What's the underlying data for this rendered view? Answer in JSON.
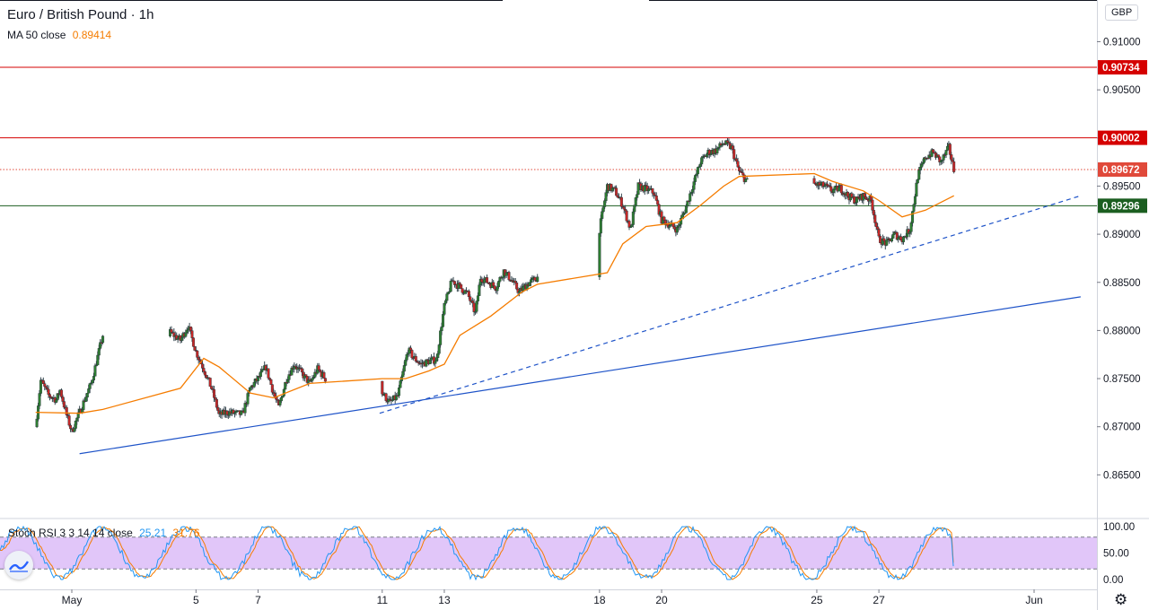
{
  "header": {
    "title": "Euro / British Pound · 1h",
    "ma_label": "MA 50 close",
    "ma_value": "0.89414",
    "currency": "GBP"
  },
  "stoch": {
    "label": "Stoch RSI 3 3 14 14 close",
    "k_value": "25.21",
    "d_value": "31.76"
  },
  "icons": {
    "settings": "gear-icon",
    "logo": "tradingview-logo-icon"
  },
  "colors": {
    "up": "#26a69a",
    "down": "#ef5350",
    "candle_body_up": "#2e7d32",
    "candle_body_down": "#c62828",
    "ma": "#f57c00",
    "trend": "#1e53c8",
    "resistance": "#d50000",
    "support": "#1b5e20",
    "current": "#e0493a",
    "stoch_band": "#e1c6f9",
    "k_line": "#2196f3",
    "d_line": "#f57c00"
  },
  "chart_data": {
    "type": "candlestick",
    "timeframe": "1h",
    "symbol": "Euro / British Pound",
    "price_scale": {
      "ticks": [
        "0.91000",
        "0.90500",
        "0.90000",
        "0.89500",
        "0.89000",
        "0.88500",
        "0.88000",
        "0.87500",
        "0.87000",
        "0.86500"
      ],
      "range": [
        0.8615,
        0.9125
      ]
    },
    "time_axis": {
      "labels": [
        {
          "label": "May",
          "date": "2020-05-01"
        },
        {
          "label": "5",
          "date": "2020-05-05"
        },
        {
          "label": "7",
          "date": "2020-05-07"
        },
        {
          "label": "11",
          "date": "2020-05-11"
        },
        {
          "label": "13",
          "date": "2020-05-13"
        },
        {
          "label": "18",
          "date": "2020-05-18"
        },
        {
          "label": "20",
          "date": "2020-05-20"
        },
        {
          "label": "25",
          "date": "2020-05-25"
        },
        {
          "label": "27",
          "date": "2020-05-27"
        },
        {
          "label": "Jun",
          "date": "2020-06-01"
        }
      ]
    },
    "close_path": [
      [
        "2020-04-29 20:00",
        0.87
      ],
      [
        "2020-04-30 00:00",
        0.8748
      ],
      [
        "2020-04-30 06:00",
        0.8733
      ],
      [
        "2020-04-30 12:00",
        0.8728
      ],
      [
        "2020-04-30 15:00",
        0.8738
      ],
      [
        "2020-04-30 20:00",
        0.8712
      ],
      [
        "2020-05-01 00:00",
        0.8695
      ],
      [
        "2020-05-01 06:00",
        0.8715
      ],
      [
        "2020-05-01 15:00",
        0.8745
      ],
      [
        "2020-05-02 00:00",
        0.8795
      ],
      [
        "2020-05-04 04:00",
        0.8798
      ],
      [
        "2020-05-04 12:00",
        0.879
      ],
      [
        "2020-05-04 18:00",
        0.8805
      ],
      [
        "2020-05-05 00:00",
        0.8778
      ],
      [
        "2020-05-05 06:00",
        0.876
      ],
      [
        "2020-05-05 12:00",
        0.874
      ],
      [
        "2020-05-05 18:00",
        0.8712
      ],
      [
        "2020-05-06 00:00",
        0.8715
      ],
      [
        "2020-05-06 12:00",
        0.8713
      ],
      [
        "2020-05-06 18:00",
        0.874
      ],
      [
        "2020-05-07 00:00",
        0.875
      ],
      [
        "2020-05-07 06:00",
        0.8762
      ],
      [
        "2020-05-07 12:00",
        0.8735
      ],
      [
        "2020-05-07 16:00",
        0.872
      ],
      [
        "2020-05-07 22:00",
        0.875
      ],
      [
        "2020-05-08 04:00",
        0.8765
      ],
      [
        "2020-05-08 10:00",
        0.8755
      ],
      [
        "2020-05-08 16:00",
        0.8745
      ],
      [
        "2020-05-08 22:00",
        0.876
      ],
      [
        "2020-05-09 04:00",
        0.875
      ],
      [
        "2020-05-11 00:00",
        0.8735
      ],
      [
        "2020-05-11 06:00",
        0.8725
      ],
      [
        "2020-05-11 12:00",
        0.8732
      ],
      [
        "2020-05-11 20:00",
        0.878
      ],
      [
        "2020-05-12 00:00",
        0.8772
      ],
      [
        "2020-05-12 06:00",
        0.8765
      ],
      [
        "2020-05-12 12:00",
        0.8768
      ],
      [
        "2020-05-12 18:00",
        0.877
      ],
      [
        "2020-05-13 00:00",
        0.8825
      ],
      [
        "2020-05-13 06:00",
        0.8852
      ],
      [
        "2020-05-13 12:00",
        0.8845
      ],
      [
        "2020-05-13 18:00",
        0.8838
      ],
      [
        "2020-05-14 00:00",
        0.8818
      ],
      [
        "2020-05-14 04:00",
        0.8855
      ],
      [
        "2020-05-14 10:00",
        0.885
      ],
      [
        "2020-05-14 16:00",
        0.8845
      ],
      [
        "2020-05-14 22:00",
        0.8862
      ],
      [
        "2020-05-15 04:00",
        0.8852
      ],
      [
        "2020-05-15 10:00",
        0.884
      ],
      [
        "2020-05-15 16:00",
        0.8848
      ],
      [
        "2020-05-16 00:00",
        0.8855
      ],
      [
        "2020-05-18 00:00",
        0.8905
      ],
      [
        "2020-05-18 06:00",
        0.895
      ],
      [
        "2020-05-18 12:00",
        0.8945
      ],
      [
        "2020-05-18 18:00",
        0.893
      ],
      [
        "2020-05-19 00:00",
        0.8905
      ],
      [
        "2020-05-19 06:00",
        0.895
      ],
      [
        "2020-05-19 12:00",
        0.8947
      ],
      [
        "2020-05-19 18:00",
        0.8943
      ],
      [
        "2020-05-20 00:00",
        0.8915
      ],
      [
        "2020-05-20 06:00",
        0.891
      ],
      [
        "2020-05-20 12:00",
        0.8905
      ],
      [
        "2020-05-20 18:00",
        0.8925
      ],
      [
        "2020-05-21 00:00",
        0.895
      ],
      [
        "2020-05-21 06:00",
        0.8975
      ],
      [
        "2020-05-21 12:00",
        0.8985
      ],
      [
        "2020-05-21 18:00",
        0.8987
      ],
      [
        "2020-05-22 00:00",
        0.8995
      ],
      [
        "2020-05-22 06:00",
        0.899
      ],
      [
        "2020-05-22 12:00",
        0.8965
      ],
      [
        "2020-05-22 18:00",
        0.8955
      ],
      [
        "2020-05-24 22:00",
        0.8952
      ],
      [
        "2020-05-25 06:00",
        0.895
      ],
      [
        "2020-05-25 12:00",
        0.8945
      ],
      [
        "2020-05-25 18:00",
        0.8948
      ],
      [
        "2020-05-26 00:00",
        0.894
      ],
      [
        "2020-05-26 06:00",
        0.8935
      ],
      [
        "2020-05-26 12:00",
        0.894
      ],
      [
        "2020-05-26 18:00",
        0.8935
      ],
      [
        "2020-05-27 00:00",
        0.8895
      ],
      [
        "2020-05-27 06:00",
        0.889
      ],
      [
        "2020-05-27 12:00",
        0.89
      ],
      [
        "2020-05-27 18:00",
        0.8895
      ],
      [
        "2020-05-28 00:00",
        0.8905
      ],
      [
        "2020-05-28 06:00",
        0.896
      ],
      [
        "2020-05-28 12:00",
        0.898
      ],
      [
        "2020-05-28 18:00",
        0.8985
      ],
      [
        "2020-05-29 00:00",
        0.8975
      ],
      [
        "2020-05-29 06:00",
        0.899
      ],
      [
        "2020-05-29 10:00",
        0.8967
      ]
    ],
    "ma50": [
      [
        "2020-04-29 20:00",
        0.8715
      ],
      [
        "2020-05-01 06:00",
        0.8714
      ],
      [
        "2020-05-02 00:00",
        0.8718
      ],
      [
        "2020-05-04 12:00",
        0.874
      ],
      [
        "2020-05-05 06:00",
        0.8771
      ],
      [
        "2020-05-05 18:00",
        0.8762
      ],
      [
        "2020-05-06 18:00",
        0.8735
      ],
      [
        "2020-05-07 12:00",
        0.873
      ],
      [
        "2020-05-08 16:00",
        0.8745
      ],
      [
        "2020-05-11 00:00",
        0.875
      ],
      [
        "2020-05-11 18:00",
        0.875
      ],
      [
        "2020-05-12 12:00",
        0.8758
      ],
      [
        "2020-05-13 00:00",
        0.8765
      ],
      [
        "2020-05-13 12:00",
        0.8795
      ],
      [
        "2020-05-14 12:00",
        0.8815
      ],
      [
        "2020-05-15 12:00",
        0.884
      ],
      [
        "2020-05-16 00:00",
        0.8848
      ],
      [
        "2020-05-18 06:00",
        0.886
      ],
      [
        "2020-05-18 18:00",
        0.889
      ],
      [
        "2020-05-19 12:00",
        0.8908
      ],
      [
        "2020-05-20 12:00",
        0.8912
      ],
      [
        "2020-05-21 06:00",
        0.893
      ],
      [
        "2020-05-22 00:00",
        0.895
      ],
      [
        "2020-05-22 12:00",
        0.896
      ],
      [
        "2020-05-24 22:00",
        0.8963
      ],
      [
        "2020-05-25 12:00",
        0.8955
      ],
      [
        "2020-05-26 12:00",
        0.8945
      ],
      [
        "2020-05-27 00:00",
        0.8935
      ],
      [
        "2020-05-27 18:00",
        0.8918
      ],
      [
        "2020-05-28 12:00",
        0.8925
      ],
      [
        "2020-05-29 10:00",
        0.894
      ]
    ],
    "horizontal_levels": [
      {
        "price": 0.90734,
        "label": "0.90734",
        "color": "#d50000"
      },
      {
        "price": 0.90002,
        "label": "0.90002",
        "color": "#d50000"
      },
      {
        "price": 0.89672,
        "label": "0.89672",
        "color": "#e0493a",
        "dotted": true
      },
      {
        "price": 0.89296,
        "label": "0.89296",
        "color": "#1b5e20"
      }
    ],
    "trendlines": [
      {
        "from": [
          "2020-05-01 06:00",
          0.8672
        ],
        "to": [
          "2020-06-02 12:00",
          0.8835
        ],
        "style": "solid"
      },
      {
        "from": [
          "2020-05-10 22:00",
          0.8714
        ],
        "to": [
          "2020-06-02 12:00",
          0.894
        ],
        "style": "dashed"
      }
    ],
    "stoch_rsi": {
      "range": [
        0,
        100
      ],
      "ticks": [
        "100.00",
        "50.00",
        "0.00"
      ],
      "band": [
        20,
        80
      ],
      "k_last": 25.21,
      "d_last": 31.76
    }
  }
}
